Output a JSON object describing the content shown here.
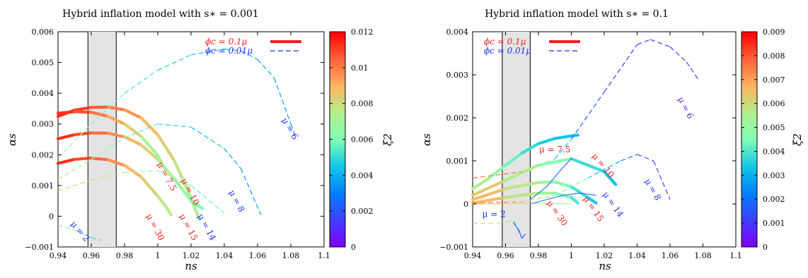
{
  "chart_data": [
    {
      "type": "line",
      "title": "Hybrid inflation model with s∗ = 0.001",
      "xlabel": "ns",
      "ylabel": "αs",
      "colorbar_label": "ξ2",
      "xlim": [
        0.94,
        1.1
      ],
      "ylim": [
        -0.001,
        0.006
      ],
      "x_ticks": [
        "0.94",
        "0.96",
        "0.98",
        "1",
        "1.02",
        "1.04",
        "1.06",
        "1.08",
        "1.1"
      ],
      "y_ticks": [
        "−0.001",
        "0",
        "0.001",
        "0.002",
        "0.003",
        "0.004",
        "0.005",
        "0.006"
      ],
      "colorbar_range": [
        0,
        0.012
      ],
      "colorbar_ticks": [
        "0",
        "0.002",
        "0.004",
        "0.006",
        "0.008",
        "0.01",
        "0.012"
      ],
      "shaded_band": [
        0.958,
        0.975
      ],
      "legend_position": "top-right",
      "legend": [
        {
          "label": "ϕc = 0.1μ",
          "style": "solid-thick",
          "color": "#ff1a1a"
        },
        {
          "label": "ϕc = 0.01μ",
          "style": "dashed",
          "color": "#1a33ff"
        }
      ],
      "series": [
        {
          "style": "thick",
          "points": [
            [
              0.94,
              0.00325
            ],
            [
              0.95,
              0.00345
            ],
            [
              0.96,
              0.00354
            ],
            [
              0.97,
              0.00355
            ],
            [
              0.98,
              0.00346
            ],
            [
              0.99,
              0.0032
            ],
            [
              1.0,
              0.00265
            ],
            [
              1.01,
              0.0018
            ],
            [
              1.018,
              0.00085
            ],
            [
              1.025,
              -0.0001
            ]
          ],
          "xi2": [
            0.0115,
            0.0112,
            0.0108,
            0.0103,
            0.0098,
            0.0092,
            0.0086,
            0.008,
            0.0074,
            0.007
          ]
        },
        {
          "style": "thick",
          "points": [
            [
              0.94,
              0.00335
            ],
            [
              0.95,
              0.0034
            ],
            [
              0.96,
              0.00338
            ],
            [
              0.97,
              0.00325
            ],
            [
              0.98,
              0.003
            ],
            [
              0.99,
              0.0026
            ],
            [
              1.0,
              0.00198
            ],
            [
              1.003,
              0.00165
            ]
          ],
          "xi2": [
            0.0115,
            0.011,
            0.0104,
            0.0097,
            0.0088,
            0.0078,
            0.0067,
            0.006
          ]
        },
        {
          "style": "thick",
          "points": [
            [
              0.94,
              0.00252
            ],
            [
              0.95,
              0.00265
            ],
            [
              0.96,
              0.00271
            ],
            [
              0.97,
              0.0027
            ],
            [
              0.98,
              0.00258
            ],
            [
              0.99,
              0.00232
            ],
            [
              1.0,
              0.00185
            ],
            [
              1.01,
              0.0012
            ],
            [
              1.02,
              0.0005
            ],
            [
              1.027,
              0.00025
            ]
          ],
          "xi2": [
            0.0115,
            0.0111,
            0.0106,
            0.01,
            0.0093,
            0.0086,
            0.0078,
            0.0071,
            0.0064,
            0.0058
          ]
        },
        {
          "style": "thick",
          "points": [
            [
              0.94,
              0.00172
            ],
            [
              0.95,
              0.00185
            ],
            [
              0.96,
              0.00189
            ],
            [
              0.97,
              0.00184
            ],
            [
              0.98,
              0.00165
            ],
            [
              0.99,
              0.00128
            ],
            [
              1.0,
              0.00065
            ],
            [
              1.005,
              0.0003
            ],
            [
              1.008,
              5e-05
            ]
          ],
          "xi2": [
            0.0115,
            0.0111,
            0.0106,
            0.01,
            0.0093,
            0.0086,
            0.008,
            0.0076,
            0.0073
          ]
        },
        {
          "style": "dashed",
          "points": [
            [
              0.94,
              0.0019
            ],
            [
              0.96,
              0.003
            ],
            [
              0.98,
              0.004
            ],
            [
              1.0,
              0.00475
            ],
            [
              1.02,
              0.00525
            ],
            [
              1.04,
              0.00544
            ],
            [
              1.05,
              0.00538
            ],
            [
              1.06,
              0.0051
            ],
            [
              1.07,
              0.0045
            ],
            [
              1.08,
              0.003
            ],
            [
              1.083,
              0.00255
            ]
          ],
          "xi2": [
            0.007,
            0.0062,
            0.0055,
            0.005,
            0.0045,
            0.0042,
            0.004,
            0.0038,
            0.0037,
            0.0033,
            0.0031
          ]
        },
        {
          "style": "dashed",
          "points": [
            [
              0.94,
              0.0012
            ],
            [
              0.96,
              0.00185
            ],
            [
              0.98,
              0.00255
            ],
            [
              1.0,
              0.003
            ],
            [
              1.02,
              0.0029
            ],
            [
              1.04,
              0.0022
            ],
            [
              1.05,
              0.00155
            ],
            [
              1.062,
              5e-05
            ]
          ],
          "xi2": [
            0.0075,
            0.0066,
            0.0058,
            0.0052,
            0.0046,
            0.004,
            0.0036,
            0.0032
          ]
        },
        {
          "style": "dashed",
          "points": [
            [
              0.94,
              0.00082
            ],
            [
              0.96,
              0.00118
            ],
            [
              0.98,
              0.00142
            ],
            [
              1.0,
              0.00148
            ],
            [
              1.02,
              0.001
            ],
            [
              1.04,
              0.0001
            ]
          ],
          "xi2": [
            0.0085,
            0.008,
            0.0074,
            0.0068,
            0.006,
            0.0052
          ]
        },
        {
          "style": "dashed",
          "points": [
            [
              0.94,
              -0.00028
            ],
            [
              0.95,
              -0.00045
            ],
            [
              0.96,
              -0.0007
            ],
            [
              0.966,
              -0.00078
            ]
          ],
          "xi2": [
            0.007,
            0.0062,
            0.0054,
            0.0048
          ]
        }
      ],
      "curve_labels": [
        {
          "text": "μ = 6",
          "x": 1.078,
          "y": 0.0028,
          "color": "#1a33ff",
          "rotate": 60
        },
        {
          "text": "μ = 7.5",
          "x": 1.004,
          "y": 0.00125,
          "color": "#e82020",
          "rotate": 62
        },
        {
          "text": "μ = 10",
          "x": 1.018,
          "y": 0.00075,
          "color": "#e82020",
          "rotate": 62
        },
        {
          "text": "μ = 8",
          "x": 1.046,
          "y": 0.00045,
          "color": "#1a33ff",
          "rotate": 62
        },
        {
          "text": "μ = 14",
          "x": 1.028,
          "y": -0.0004,
          "color": "#1a33ff",
          "rotate": 62
        },
        {
          "text": "μ = 15",
          "x": 1.017,
          "y": -0.0004,
          "color": "#e82020",
          "rotate": 62
        },
        {
          "text": "μ = 30",
          "x": 0.997,
          "y": -0.0004,
          "color": "#e82020",
          "rotate": 62
        },
        {
          "text": "μ = 2",
          "x": 0.952,
          "y": -0.00055,
          "color": "#1a33ff",
          "rotate": 50
        }
      ]
    },
    {
      "type": "line",
      "title": "Hybrid inflation model with s∗ = 0.1",
      "xlabel": "ns",
      "ylabel": "αs",
      "colorbar_label": "ξ2",
      "xlim": [
        0.94,
        1.1
      ],
      "ylim": [
        -0.001,
        0.004
      ],
      "x_ticks": [
        "0.94",
        "0.96",
        "0.98",
        "1",
        "1.02",
        "1.04",
        "1.06",
        "1.08",
        "1.1"
      ],
      "y_ticks": [
        "−0.001",
        "0",
        "0.001",
        "0.002",
        "0.003",
        "0.004"
      ],
      "colorbar_range": [
        0,
        0.009
      ],
      "colorbar_ticks": [
        "0",
        "0.001",
        "0.002",
        "0.003",
        "0.004",
        "0.005",
        "0.006",
        "0.007",
        "0.008",
        "0.009"
      ],
      "shaded_band": [
        0.958,
        0.975
      ],
      "legend_position": "top-left",
      "legend": [
        {
          "label": "ϕc = 0.1μ",
          "style": "solid-thick",
          "color": "#ff1a1a"
        },
        {
          "label": "ϕc = 0.01μ",
          "style": "dashed",
          "color": "#1a33ff"
        }
      ],
      "series": [
        {
          "style": "thick",
          "points": [
            [
              0.94,
              0.00035
            ],
            [
              0.95,
              0.0006
            ],
            [
              0.96,
              0.0009
            ],
            [
              0.97,
              0.00118
            ],
            [
              0.98,
              0.0014
            ],
            [
              0.99,
              0.00152
            ],
            [
              1.0,
              0.00158
            ],
            [
              1.004,
              0.0016
            ]
          ],
          "xi2": [
            0.006,
            0.0052,
            0.0045,
            0.004,
            0.0036,
            0.0034,
            0.0033,
            0.0032
          ]
        },
        {
          "style": "thick",
          "points": [
            [
              0.94,
              0.0002
            ],
            [
              0.96,
              0.00055
            ],
            [
              0.98,
              0.0009
            ],
            [
              1.0,
              0.00105
            ],
            [
              1.02,
              0.00075
            ],
            [
              1.027,
              0.00045
            ]
          ],
          "xi2": [
            0.0068,
            0.0058,
            0.005,
            0.0042,
            0.0034,
            0.003
          ]
        },
        {
          "style": "thick",
          "points": [
            [
              0.94,
              0.0001
            ],
            [
              0.96,
              0.00035
            ],
            [
              0.98,
              0.0005
            ],
            [
              0.99,
              0.00051
            ],
            [
              1.0,
              0.0004
            ],
            [
              1.01,
              0.00015
            ],
            [
              1.015,
              2e-05
            ]
          ],
          "xi2": [
            0.007,
            0.0062,
            0.0054,
            0.0048,
            0.0042,
            0.0036,
            0.0032
          ]
        },
        {
          "style": "thick",
          "points": [
            [
              0.94,
              2e-05
            ],
            [
              0.96,
              0.00015
            ],
            [
              0.98,
              0.00025
            ],
            [
              0.99,
              0.00025
            ],
            [
              1.0,
              0.00015
            ],
            [
              1.004,
              2e-05
            ]
          ],
          "xi2": [
            0.007,
            0.0062,
            0.0054,
            0.0048,
            0.0042,
            0.0038
          ]
        },
        {
          "style": "thin",
          "points": [
            [
              0.94,
              0.0
            ],
            [
              0.96,
              0.0
            ],
            [
              0.98,
              2e-05
            ],
            [
              1.0,
              0.0
            ]
          ],
          "xi2": [
            0.007,
            0.0064,
            0.0058,
            0.0052
          ]
        },
        {
          "style": "dashed",
          "points": [
            [
              0.94,
              0.0006
            ],
            [
              0.97,
              0.00075
            ],
            [
              0.98,
              0.0009
            ],
            [
              0.99,
              0.00105
            ],
            [
              1.0,
              0.0015
            ],
            [
              1.02,
              0.0026
            ],
            [
              1.04,
              0.0037
            ],
            [
              1.048,
              0.00382
            ],
            [
              1.06,
              0.00365
            ],
            [
              1.07,
              0.0033
            ],
            [
              1.077,
              0.0029
            ]
          ],
          "xi2": [
            0.008,
            0.0072,
            0.0055,
            0.0042,
            0.0022,
            0.0012,
            0.0009,
            0.0008,
            0.0008,
            0.0008,
            0.0008
          ]
        },
        {
          "style": "thin",
          "points": [
            [
              0.975,
              0.0001
            ],
            [
              0.985,
              0.0004
            ],
            [
              0.995,
              0.00085
            ],
            [
              1.0,
              0.00105
            ]
          ],
          "xi2": [
            0.0024,
            0.002,
            0.0017,
            0.0015
          ]
        },
        {
          "style": "dashed",
          "points": [
            [
              0.94,
              2e-05
            ],
            [
              0.97,
              5e-05
            ],
            [
              0.99,
              0.0002
            ],
            [
              1.01,
              0.0006
            ],
            [
              1.03,
              0.001
            ],
            [
              1.04,
              0.00115
            ],
            [
              1.05,
              0.001
            ],
            [
              1.06,
              0.0001
            ]
          ],
          "xi2": [
            0.008,
            0.007,
            0.0055,
            0.004,
            0.0025,
            0.0018,
            0.0014,
            0.001
          ]
        },
        {
          "style": "thin",
          "points": [
            [
              0.975,
              0.0
            ],
            [
              0.985,
              0.0001
            ],
            [
              0.995,
              0.0002
            ],
            [
              1.005,
              0.00025
            ],
            [
              1.015,
              0.0002
            ]
          ],
          "xi2": [
            0.0026,
            0.0022,
            0.002,
            0.0018,
            0.0018
          ]
        },
        {
          "style": "dashed",
          "points": [
            [
              0.94,
              -0.00045
            ],
            [
              0.955,
              -0.00045
            ],
            [
              0.965,
              -0.0004
            ],
            [
              0.97,
              -0.0008
            ]
          ],
          "xi2": [
            0.006,
            0.0058,
            0.005,
            0.002
          ]
        },
        {
          "style": "thin",
          "points": [
            [
              0.965,
              -0.00045
            ],
            [
              0.968,
              -0.0006
            ],
            [
              0.97,
              -0.0008
            ],
            [
              0.972,
              -0.0007
            ]
          ],
          "xi2": [
            0.002,
            0.0016,
            0.0012,
            0.0014
          ]
        }
      ],
      "curve_labels": [
        {
          "text": "μ = 6",
          "x": 1.068,
          "y": 0.0022,
          "color": "#6020e0",
          "rotate": 62
        },
        {
          "text": "μ = 7.5",
          "x": 0.99,
          "y": 0.0012,
          "color": "#e82020",
          "rotate": 0
        },
        {
          "text": "μ = 10",
          "x": 1.018,
          "y": 0.00085,
          "color": "#e82020",
          "rotate": 50
        },
        {
          "text": "μ = 8",
          "x": 1.048,
          "y": 0.0003,
          "color": "#1a33ff",
          "rotate": 60
        },
        {
          "text": "μ = 14",
          "x": 1.024,
          "y": -5e-05,
          "color": "#1a33ff",
          "rotate": 55
        },
        {
          "text": "μ = 15",
          "x": 1.012,
          "y": -0.00015,
          "color": "#e82020",
          "rotate": 55
        },
        {
          "text": "μ = 30",
          "x": 0.99,
          "y": -0.00025,
          "color": "#e82020",
          "rotate": 55
        },
        {
          "text": "μ = 2",
          "x": 0.953,
          "y": -0.0003,
          "color": "#1a33ff",
          "rotate": 0
        }
      ]
    }
  ]
}
